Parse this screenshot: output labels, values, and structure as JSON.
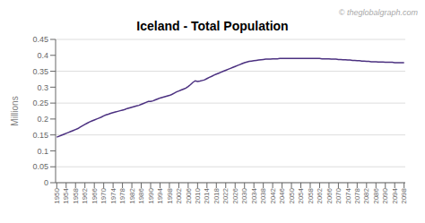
{
  "chart_data": {
    "type": "line",
    "title": "Iceland - Total Population",
    "y_label": "Millions",
    "annotations": [
      "© theglobalgraph.com"
    ],
    "color": "#4B3080",
    "grid": true,
    "xlim": [
      1949.5,
      2098.5
    ],
    "xticks": [
      1950,
      1954,
      1958,
      1962,
      1966,
      1970,
      1974,
      1978,
      1982,
      1986,
      1990,
      1994,
      1998,
      2002,
      2006,
      2010,
      2014,
      2018,
      2022,
      2026,
      2030,
      2034,
      2038,
      2042,
      2046,
      2050,
      2054,
      2058,
      2062,
      2066,
      2070,
      2074,
      2078,
      2082,
      2086,
      2090,
      2094,
      2098
    ],
    "ylim": [
      0,
      0.45
    ],
    "yticks": [
      0,
      0.05,
      0.1,
      0.15,
      0.2,
      0.25,
      0.3,
      0.35,
      0.4,
      0.45
    ],
    "x": [
      1950,
      1951,
      1952,
      1953,
      1954,
      1955,
      1956,
      1957,
      1958,
      1959,
      1960,
      1961,
      1962,
      1963,
      1964,
      1965,
      1966,
      1967,
      1968,
      1969,
      1970,
      1971,
      1972,
      1973,
      1974,
      1975,
      1976,
      1977,
      1978,
      1979,
      1980,
      1981,
      1982,
      1983,
      1984,
      1985,
      1986,
      1987,
      1988,
      1989,
      1990,
      1991,
      1992,
      1993,
      1994,
      1995,
      1996,
      1997,
      1998,
      1999,
      2000,
      2001,
      2002,
      2003,
      2004,
      2005,
      2006,
      2007,
      2008,
      2009,
      2010,
      2011,
      2012,
      2013,
      2014,
      2015,
      2016,
      2017,
      2018,
      2019,
      2020,
      2021,
      2022,
      2023,
      2024,
      2025,
      2026,
      2027,
      2028,
      2029,
      2030,
      2031,
      2032,
      2033,
      2034,
      2035,
      2036,
      2037,
      2038,
      2039,
      2040,
      2041,
      2042,
      2043,
      2044,
      2045,
      2046,
      2047,
      2048,
      2049,
      2050,
      2051,
      2052,
      2053,
      2054,
      2055,
      2056,
      2057,
      2058,
      2059,
      2060,
      2061,
      2062,
      2063,
      2064,
      2065,
      2066,
      2067,
      2068,
      2069,
      2070,
      2071,
      2072,
      2073,
      2074,
      2075,
      2076,
      2077,
      2078,
      2079,
      2080,
      2081,
      2082,
      2083,
      2084,
      2085,
      2086,
      2087,
      2088,
      2089,
      2090,
      2091,
      2092,
      2093,
      2094,
      2095,
      2096,
      2097,
      2098
    ],
    "values": [
      0.143,
      0.146,
      0.149,
      0.152,
      0.155,
      0.158,
      0.161,
      0.164,
      0.167,
      0.17,
      0.175,
      0.179,
      0.183,
      0.187,
      0.191,
      0.194,
      0.197,
      0.2,
      0.203,
      0.206,
      0.21,
      0.213,
      0.215,
      0.218,
      0.22,
      0.222,
      0.224,
      0.226,
      0.228,
      0.23,
      0.233,
      0.235,
      0.237,
      0.239,
      0.241,
      0.243,
      0.246,
      0.249,
      0.252,
      0.255,
      0.255,
      0.257,
      0.26,
      0.263,
      0.266,
      0.268,
      0.27,
      0.272,
      0.274,
      0.277,
      0.281,
      0.285,
      0.288,
      0.291,
      0.294,
      0.297,
      0.302,
      0.308,
      0.315,
      0.32,
      0.318,
      0.319,
      0.321,
      0.323,
      0.327,
      0.331,
      0.334,
      0.338,
      0.341,
      0.344,
      0.347,
      0.35,
      0.353,
      0.356,
      0.359,
      0.362,
      0.365,
      0.368,
      0.371,
      0.374,
      0.377,
      0.379,
      0.381,
      0.382,
      0.383,
      0.384,
      0.385,
      0.386,
      0.387,
      0.388,
      0.388,
      0.388,
      0.389,
      0.389,
      0.389,
      0.39,
      0.39,
      0.39,
      0.39,
      0.39,
      0.39,
      0.39,
      0.39,
      0.39,
      0.39,
      0.39,
      0.39,
      0.39,
      0.39,
      0.39,
      0.39,
      0.39,
      0.39,
      0.389,
      0.389,
      0.389,
      0.389,
      0.388,
      0.388,
      0.388,
      0.387,
      0.387,
      0.386,
      0.386,
      0.385,
      0.385,
      0.384,
      0.384,
      0.383,
      0.383,
      0.382,
      0.382,
      0.381,
      0.381,
      0.38,
      0.38,
      0.38,
      0.379,
      0.379,
      0.379,
      0.378,
      0.378,
      0.378,
      0.378,
      0.377,
      0.377,
      0.377,
      0.377,
      0.377
    ]
  }
}
